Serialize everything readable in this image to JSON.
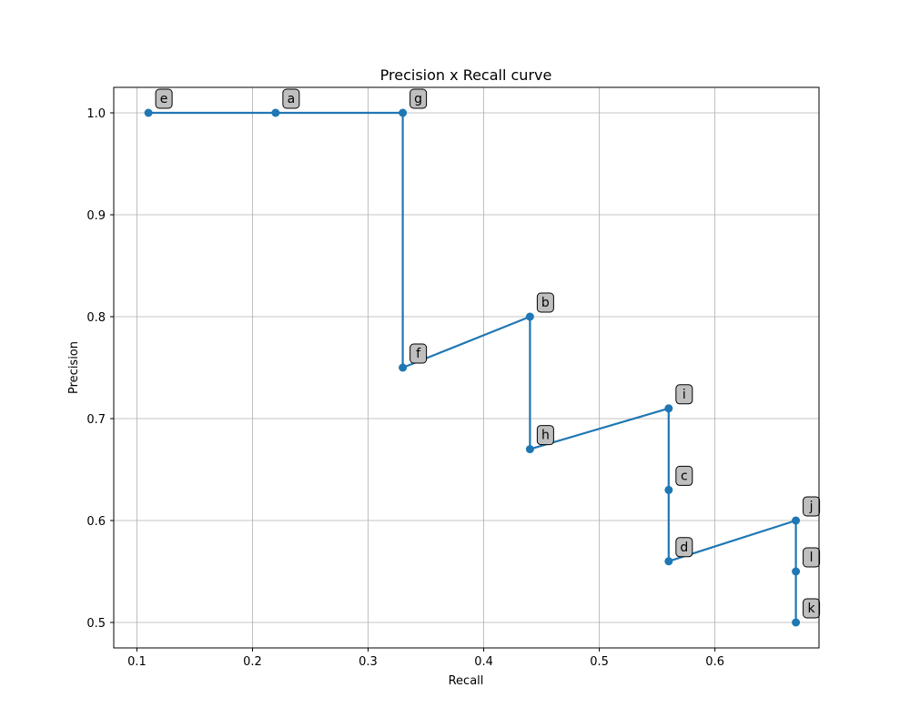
{
  "chart_data": {
    "type": "line",
    "title": "Precision x Recall curve",
    "xlabel": "Recall",
    "ylabel": "Precision",
    "xlim": [
      0.08,
      0.69
    ],
    "ylim": [
      0.475,
      1.025
    ],
    "xticks": [
      "0.1",
      "0.2",
      "0.3",
      "0.4",
      "0.5",
      "0.6"
    ],
    "xtick_values": [
      0.1,
      0.2,
      0.3,
      0.4,
      0.5,
      0.6
    ],
    "yticks": [
      "0.5",
      "0.6",
      "0.7",
      "0.8",
      "0.9",
      "1.0"
    ],
    "ytick_values": [
      0.5,
      0.6,
      0.7,
      0.8,
      0.9,
      1.0
    ],
    "grid": true,
    "series": [
      {
        "color": "#1f77b4",
        "points": [
          {
            "label": "e",
            "x": 0.11,
            "y": 1.0
          },
          {
            "label": "a",
            "x": 0.22,
            "y": 1.0
          },
          {
            "label": "g",
            "x": 0.33,
            "y": 1.0
          },
          {
            "label": "f",
            "x": 0.33,
            "y": 0.75
          },
          {
            "label": "b",
            "x": 0.44,
            "y": 0.8
          },
          {
            "label": "h",
            "x": 0.44,
            "y": 0.67
          },
          {
            "label": "i",
            "x": 0.56,
            "y": 0.71
          },
          {
            "label": "c",
            "x": 0.56,
            "y": 0.63
          },
          {
            "label": "d",
            "x": 0.56,
            "y": 0.56
          },
          {
            "label": "j",
            "x": 0.67,
            "y": 0.6
          },
          {
            "label": "l",
            "x": 0.67,
            "y": 0.55
          },
          {
            "label": "k",
            "x": 0.67,
            "y": 0.5
          }
        ]
      }
    ]
  }
}
